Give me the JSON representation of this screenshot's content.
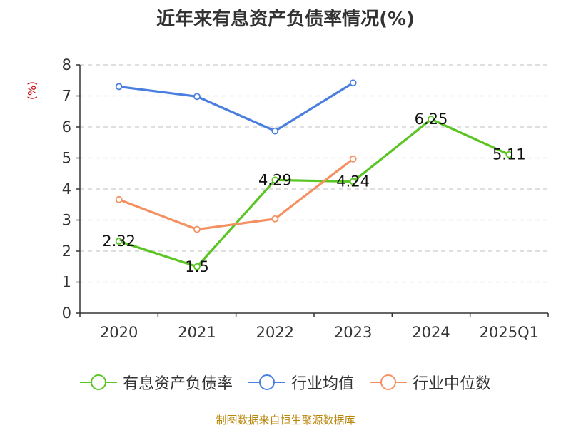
{
  "chart_data": {
    "type": "line",
    "title": "近年来有息资产负债率情况(%)",
    "ylabel": "(%)",
    "categories": [
      "2020",
      "2021",
      "2022",
      "2023",
      "2024",
      "2025Q1"
    ],
    "ylim": [
      0,
      8
    ],
    "yticks": [
      0,
      1,
      2,
      3,
      4,
      5,
      6,
      7,
      8
    ],
    "grid": true,
    "legend_position": "bottom",
    "series": [
      {
        "name": "有息资产负债率",
        "color": "#5ac523",
        "values": [
          2.32,
          1.5,
          4.29,
          4.24,
          6.25,
          5.11
        ],
        "labels": [
          "2.32",
          "1.5",
          "4.29",
          "4.24",
          "6.25",
          "5.11"
        ]
      },
      {
        "name": "行业均值",
        "color": "#4a7fe0",
        "values": [
          7.3,
          6.98,
          5.87,
          7.42,
          null,
          null
        ]
      },
      {
        "name": "行业中位数",
        "color": "#f59062",
        "values": [
          3.66,
          2.7,
          3.04,
          4.97,
          null,
          null
        ]
      }
    ],
    "source": "制图数据来自恒生聚源数据库"
  }
}
